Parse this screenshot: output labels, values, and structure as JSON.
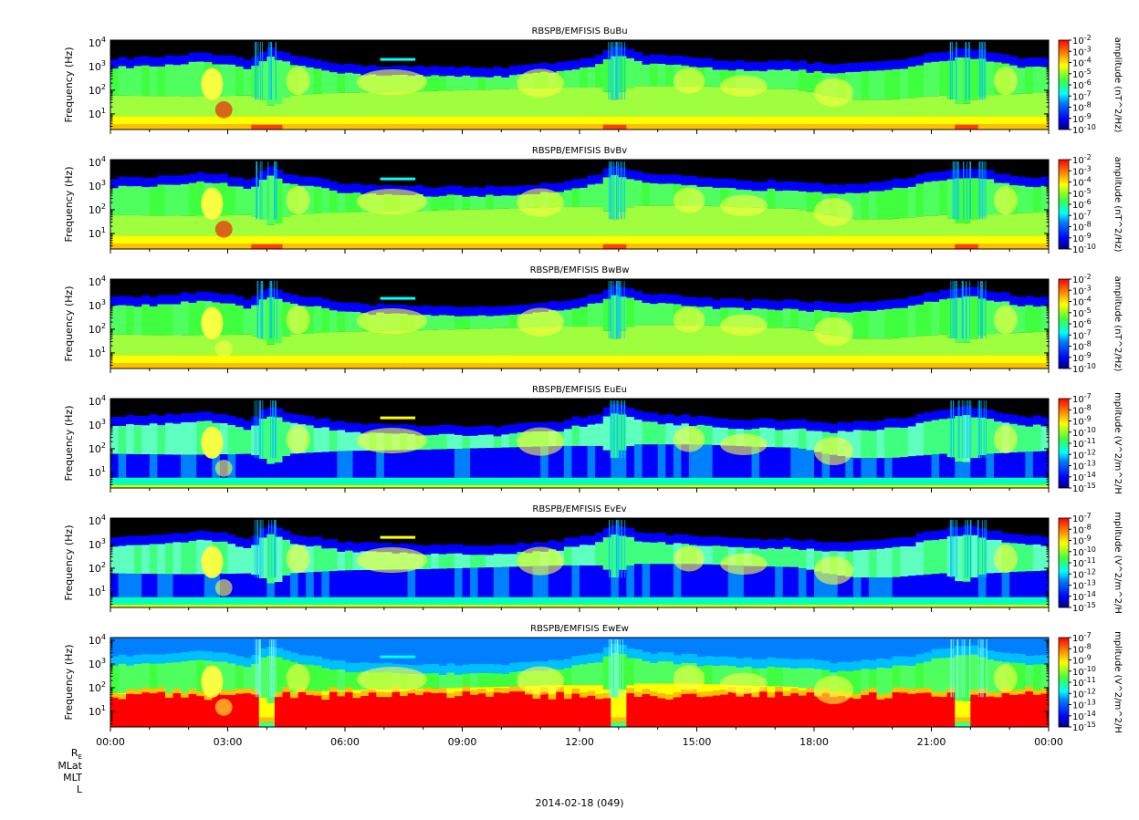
{
  "chart_data": [
    {
      "type": "heatmap",
      "title": "RBSPB/EMFISIS  BuBu",
      "ylabel": "Frequency (Hz)",
      "yscale": "log",
      "ylim": [
        2.2,
        13000
      ],
      "yticks": [
        {
          "exp": "1"
        },
        {
          "exp": "2"
        },
        {
          "exp": "3"
        },
        {
          "exp": "4"
        }
      ],
      "colorbar": {
        "label": "amplitude (nT^2/Hz)",
        "scale": "log",
        "range": [
          1e-10,
          0.01
        ],
        "ticks": [
          "-2",
          "-3",
          "-4",
          "-5",
          "-6",
          "-7",
          "-8",
          "-9",
          "-10"
        ]
      },
      "kind": "B"
    },
    {
      "type": "heatmap",
      "title": "RBSPB/EMFISIS  BvBv",
      "ylabel": "Frequency (Hz)",
      "yscale": "log",
      "ylim": [
        2.2,
        13000
      ],
      "yticks": [
        {
          "exp": "1"
        },
        {
          "exp": "2"
        },
        {
          "exp": "3"
        },
        {
          "exp": "4"
        }
      ],
      "colorbar": {
        "label": "amplitude (nT^2/Hz)",
        "scale": "log",
        "range": [
          1e-10,
          0.01
        ],
        "ticks": [
          "-2",
          "-3",
          "-4",
          "-5",
          "-6",
          "-7",
          "-8",
          "-9",
          "-10"
        ]
      },
      "kind": "B"
    },
    {
      "type": "heatmap",
      "title": "RBSPB/EMFISIS  BwBw",
      "ylabel": "Frequency (Hz)",
      "yscale": "log",
      "ylim": [
        2.2,
        13000
      ],
      "yticks": [
        {
          "exp": "1"
        },
        {
          "exp": "2"
        },
        {
          "exp": "3"
        },
        {
          "exp": "4"
        }
      ],
      "colorbar": {
        "label": "amplitude (nT^2/Hz)",
        "scale": "log",
        "range": [
          1e-10,
          0.01
        ],
        "ticks": [
          "-2",
          "-3",
          "-4",
          "-5",
          "-6",
          "-7",
          "-8",
          "-9",
          "-10"
        ]
      },
      "kind": "Bw"
    },
    {
      "type": "heatmap",
      "title": "RBSPB/EMFISIS  EuEu",
      "ylabel": "Frequency (Hz)",
      "yscale": "log",
      "ylim": [
        2.2,
        13000
      ],
      "yticks": [
        {
          "exp": "1"
        },
        {
          "exp": "2"
        },
        {
          "exp": "3"
        },
        {
          "exp": "4"
        }
      ],
      "colorbar": {
        "label": "mplitude (V^2/m^2/H",
        "scale": "log",
        "range": [
          1e-15,
          1e-07
        ],
        "ticks": [
          "-7",
          "-8",
          "-9",
          "-10",
          "-11",
          "-12",
          "-13",
          "-14",
          "-15"
        ]
      },
      "kind": "E"
    },
    {
      "type": "heatmap",
      "title": "RBSPB/EMFISIS  EvEv",
      "ylabel": "Frequency (Hz)",
      "yscale": "log",
      "ylim": [
        2.2,
        13000
      ],
      "yticks": [
        {
          "exp": "1"
        },
        {
          "exp": "2"
        },
        {
          "exp": "3"
        },
        {
          "exp": "4"
        }
      ],
      "colorbar": {
        "label": "mplitude (V^2/m^2/H",
        "scale": "log",
        "range": [
          1e-15,
          1e-07
        ],
        "ticks": [
          "-7",
          "-8",
          "-9",
          "-10",
          "-11",
          "-12",
          "-13",
          "-14",
          "-15"
        ]
      },
      "kind": "E"
    },
    {
      "type": "heatmap",
      "title": "RBSPB/EMFISIS  EwEw",
      "ylabel": "Frequency (Hz)",
      "yscale": "log",
      "ylim": [
        2.2,
        13000
      ],
      "yticks": [
        {
          "exp": "1"
        },
        {
          "exp": "2"
        },
        {
          "exp": "3"
        },
        {
          "exp": "4"
        }
      ],
      "colorbar": {
        "label": "mplitude (V^2/m^2/H",
        "scale": "log",
        "range": [
          1e-15,
          1e-07
        ],
        "ticks": [
          "-7",
          "-8",
          "-9",
          "-10",
          "-11",
          "-12",
          "-13",
          "-14",
          "-15"
        ]
      },
      "kind": "Ew"
    }
  ],
  "xaxis": {
    "ticks": [
      "00:00",
      "03:00",
      "06:00",
      "09:00",
      "12:00",
      "15:00",
      "18:00",
      "21:00",
      "00:00"
    ],
    "range_hours": [
      0,
      24
    ]
  },
  "ephemeris_labels": [
    "R",
    "MLat",
    "MLT",
    "L"
  ],
  "ephemeris_subscript": "E",
  "date_label": "2014-02-18 (049)",
  "tick_base": "10",
  "colormap": [
    "#00007f",
    "#0000ff",
    "#007fff",
    "#00ffff",
    "#7fff7f",
    "#ffff00",
    "#ff7f00",
    "#ff0000"
  ]
}
